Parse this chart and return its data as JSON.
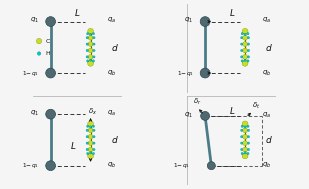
{
  "bg": "#f5f5f5",
  "teal": "#4a7c87",
  "green_mol": "#c8df28",
  "cyan_mol": "#00c8c8",
  "gray_dot": "#506870",
  "black": "#111111",
  "divider": "#aaaaaa",
  "fs": 5.0,
  "dot_r": 0.042,
  "mol_scale": 1.0,
  "panels": {
    "TL": [
      0.0,
      0.5,
      0.5,
      0.5
    ],
    "TR": [
      0.5,
      0.5,
      0.5,
      0.5
    ],
    "BL": [
      0.0,
      0.0,
      0.5,
      0.5
    ],
    "BR": [
      0.5,
      0.0,
      0.5,
      0.5
    ]
  }
}
